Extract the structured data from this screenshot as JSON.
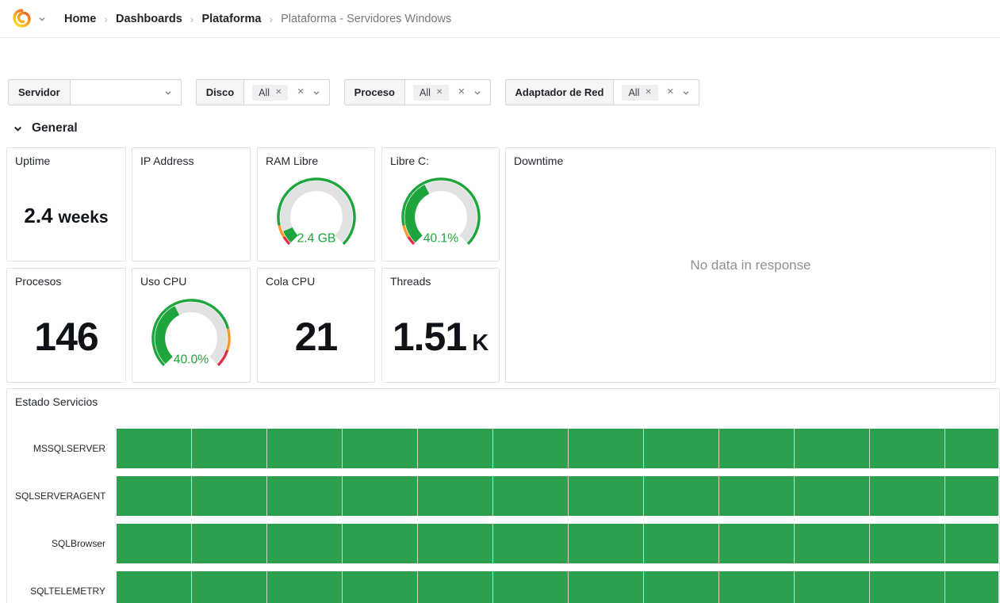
{
  "nav": {
    "breadcrumb": [
      {
        "label": "Home"
      },
      {
        "label": "Dashboards"
      },
      {
        "label": "Plataforma"
      },
      {
        "label": "Plataforma - Servidores Windows"
      }
    ],
    "separator": "›"
  },
  "icons": {
    "remove": "✕"
  },
  "filters": {
    "servidor": {
      "label": "Servidor",
      "value": ""
    },
    "disco": {
      "label": "Disco",
      "selected": "All"
    },
    "proceso": {
      "label": "Proceso",
      "selected": "All"
    },
    "adaptador": {
      "label": "Adaptador de Red",
      "selected": "All"
    }
  },
  "section": {
    "title": "General"
  },
  "panels": {
    "uptime": {
      "title": "Uptime",
      "value": "2.4",
      "unit": "weeks"
    },
    "ip_address": {
      "title": "IP Address"
    },
    "ram_libre": {
      "title": "RAM Libre",
      "value": "2.4 GB",
      "fill": 0.08,
      "thresholds": [
        {
          "to": 0.05,
          "color": "#E02F44"
        },
        {
          "to": 0.12,
          "color": "#FF9830"
        },
        {
          "to": 1,
          "color": "#1EA53E"
        }
      ]
    },
    "libre_c": {
      "title": "Libre C:",
      "value": "40.1%",
      "fill": 0.401,
      "thresholds": [
        {
          "to": 0.05,
          "color": "#E02F44"
        },
        {
          "to": 0.12,
          "color": "#FF9830"
        },
        {
          "to": 1,
          "color": "#1EA53E"
        }
      ]
    },
    "downtime": {
      "title": "Downtime",
      "message": "No data in response"
    },
    "procesos": {
      "title": "Procesos",
      "value": "146"
    },
    "uso_cpu": {
      "title": "Uso CPU",
      "value": "40.0%",
      "fill": 0.4,
      "thresholds": [
        {
          "to": 0.78,
          "color": "#1EA53E"
        },
        {
          "to": 0.9,
          "color": "#FF9830"
        },
        {
          "to": 1,
          "color": "#E02F44"
        }
      ]
    },
    "cola_cpu": {
      "title": "Cola CPU",
      "value": "21"
    },
    "threads": {
      "title": "Threads",
      "value": "1.51",
      "unit": "K"
    }
  },
  "estado_servicios": {
    "title": "Estado Servicios",
    "rows": [
      {
        "label": "MSSQLSERVER",
        "state": "up"
      },
      {
        "label": "SQLSERVERAGENT",
        "state": "up"
      },
      {
        "label": "SQLBrowser",
        "state": "up"
      },
      {
        "label": "SQLTELEMETRY",
        "state": "up"
      }
    ],
    "state_color_up": "#2BA14D"
  },
  "colors": {
    "gauge_green": "#1EA53E",
    "gauge_track": "#E1E2E4",
    "threshold_orange": "#FF9830",
    "threshold_red": "#E02F44"
  }
}
